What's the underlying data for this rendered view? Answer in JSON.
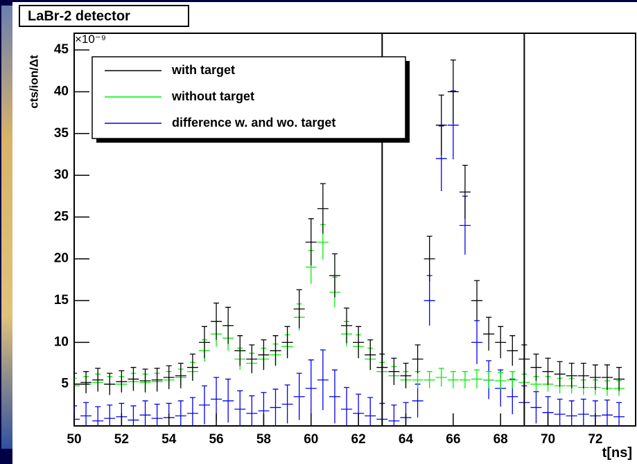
{
  "chart_data": {
    "type": "errorbar",
    "title": "LaBr-2 detector",
    "ylabel": "cts/ion/Δt",
    "xlabel": "t[ns]",
    "y_exponent": "×10⁻⁹",
    "xlim": [
      50,
      73.7
    ],
    "ylim": [
      0,
      47
    ],
    "xticks": [
      50,
      52,
      54,
      56,
      58,
      60,
      62,
      64,
      66,
      68,
      70,
      72
    ],
    "yticks": [
      5,
      10,
      15,
      20,
      25,
      30,
      35,
      40,
      45
    ],
    "vlines": [
      63,
      69
    ],
    "legend": "top-left",
    "x": [
      50,
      50.5,
      51,
      51.5,
      52,
      52.5,
      53,
      53.5,
      54,
      54.5,
      55,
      55.5,
      56,
      56.5,
      57,
      57.5,
      58,
      58.5,
      59,
      59.5,
      60,
      60.5,
      61,
      61.5,
      62,
      62.5,
      63,
      63.5,
      64,
      64.5,
      65,
      65.5,
      66,
      66.5,
      67,
      67.5,
      68,
      68.5,
      69,
      69.5,
      70,
      70.5,
      71,
      71.5,
      72,
      72.5,
      73
    ],
    "series": [
      {
        "name": "with target",
        "color": "#000000",
        "values": [
          5,
          5.2,
          5.5,
          5,
          5.3,
          5.6,
          5.4,
          5.5,
          5.8,
          6,
          7,
          10,
          12.5,
          12,
          9,
          8,
          8.5,
          9,
          10,
          14,
          22,
          26,
          18,
          12,
          10,
          8.5,
          7,
          6.5,
          6,
          8,
          20,
          36,
          40,
          28,
          15,
          11,
          10,
          9,
          8,
          7,
          6.5,
          6.2,
          6,
          6,
          5.8,
          5.8,
          5.6
        ],
        "errors": [
          1.3,
          1.3,
          1.4,
          1.3,
          1.3,
          1.4,
          1.4,
          1.4,
          1.4,
          1.5,
          1.6,
          1.9,
          2.2,
          2.2,
          1.8,
          1.7,
          1.8,
          1.8,
          1.9,
          2.3,
          2.8,
          3,
          2.6,
          2.1,
          1.9,
          1.8,
          1.6,
          1.6,
          1.5,
          1.7,
          2.7,
          3.6,
          3.8,
          3.2,
          2.4,
          2,
          1.9,
          1.8,
          1.7,
          1.6,
          1.6,
          1.5,
          1.5,
          1.5,
          1.5,
          1.5,
          1.4
        ]
      },
      {
        "name": "without target",
        "color": "#00ee00",
        "values": [
          4.8,
          5,
          5.2,
          5,
          5,
          5.3,
          5.2,
          5.3,
          5.5,
          5.8,
          6.5,
          9,
          11,
          10.5,
          8,
          7.5,
          8,
          8.5,
          9.5,
          13,
          19,
          22,
          16,
          11,
          9.5,
          8,
          6.5,
          6,
          5.5,
          5.5,
          5.5,
          5.8,
          5.5,
          5.5,
          5.6,
          5.5,
          5.4,
          5.5,
          5.2,
          5,
          5,
          4.8,
          4.8,
          4.6,
          4.6,
          4.5,
          4.5
        ],
        "errors": [
          0.9,
          0.9,
          1,
          0.9,
          0.9,
          1,
          1,
          1,
          1,
          1,
          1.1,
          1.3,
          1.5,
          1.5,
          1.3,
          1.2,
          1.3,
          1.3,
          1.4,
          1.6,
          2,
          2.1,
          1.8,
          1.5,
          1.4,
          1.3,
          1.1,
          1.1,
          1,
          1,
          1,
          1.1,
          1,
          1,
          1.1,
          1,
          1,
          1,
          1,
          0.9,
          0.9,
          0.9,
          0.9,
          0.9,
          0.9,
          0.9,
          0.9
        ]
      },
      {
        "name": "difference w. and wo. target",
        "color": "#0000ee",
        "values": [
          0.8,
          1.2,
          0.6,
          0.9,
          1.1,
          0.7,
          1.3,
          0.9,
          1,
          1.2,
          1.5,
          2.5,
          3.2,
          3,
          2,
          1.5,
          1.8,
          2.2,
          2.6,
          3.5,
          4.5,
          5.5,
          3.5,
          2,
          1.5,
          1.2,
          0.8,
          0.6,
          1,
          3,
          15,
          32,
          36,
          24,
          10,
          5.5,
          4.5,
          3.5,
          2.8,
          2.2,
          1.6,
          1.4,
          1.2,
          1.4,
          1.2,
          1.3,
          1.1
        ],
        "errors": [
          1.6,
          1.6,
          1.7,
          1.6,
          1.6,
          1.7,
          1.7,
          1.7,
          1.7,
          1.8,
          1.9,
          2.3,
          2.6,
          2.6,
          2.2,
          2.1,
          2.2,
          2.2,
          2.3,
          2.8,
          3.4,
          3.6,
          3.2,
          2.6,
          2.3,
          2.2,
          1.9,
          1.9,
          1.8,
          2,
          3,
          3.9,
          4.1,
          3.5,
          2.6,
          2.3,
          2.2,
          2.1,
          2,
          1.9,
          1.9,
          1.8,
          1.8,
          1.8,
          1.8,
          1.8,
          1.7
        ]
      }
    ]
  }
}
